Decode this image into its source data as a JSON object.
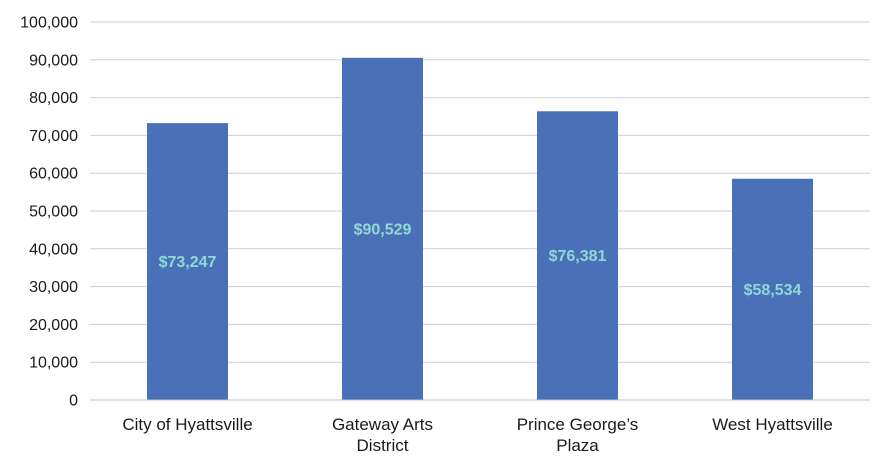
{
  "chart_data": {
    "type": "bar",
    "categories": [
      [
        "City of Hyattsville"
      ],
      [
        "Gateway Arts",
        "District"
      ],
      [
        "Prince George’s",
        "Plaza"
      ],
      [
        "West Hyattsville"
      ]
    ],
    "values": [
      73247,
      90529,
      76381,
      58534
    ],
    "data_labels": [
      "$73,247",
      "$90,529",
      "$76,381",
      "$58,534"
    ],
    "y_ticks": [
      {
        "value": 0,
        "label": "0"
      },
      {
        "value": 10000,
        "label": "10,000"
      },
      {
        "value": 20000,
        "label": "20,000"
      },
      {
        "value": 30000,
        "label": "30,000"
      },
      {
        "value": 40000,
        "label": "40,000"
      },
      {
        "value": 50000,
        "label": "50,000"
      },
      {
        "value": 60000,
        "label": "60,000"
      },
      {
        "value": 70000,
        "label": "70,000"
      },
      {
        "value": 80000,
        "label": "80,000"
      },
      {
        "value": 90000,
        "label": "90,000"
      },
      {
        "value": 100000,
        "label": "100,000"
      }
    ],
    "ylim": [
      0,
      100000
    ],
    "grid": true,
    "legend": "none",
    "title": "",
    "xlabel": "",
    "ylabel": "",
    "colors": {
      "bar": "#4a71b7",
      "data_label": "#8fd9d4",
      "grid": "#cfcfcf",
      "axis": "#bfbfbf"
    }
  }
}
